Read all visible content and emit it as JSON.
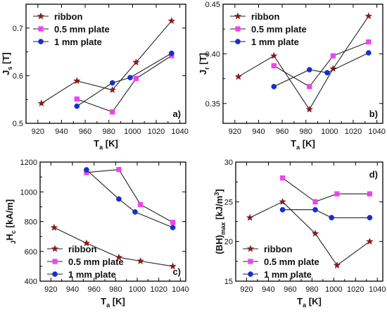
{
  "chart_data": [
    {
      "type": "line",
      "panel_label": "a)",
      "xlabel_main": "T",
      "xlabel_sub": "a",
      "xlabel_unit": " [K]",
      "ylabel_main": "J",
      "ylabel_sub": "s",
      "ylabel_sup": "",
      "ylabel_unit": " [T]",
      "xlim": [
        910,
        1045
      ],
      "ylim": [
        0.5,
        0.75
      ],
      "xticks": [
        920,
        940,
        960,
        980,
        1000,
        1020,
        1040
      ],
      "yticks": [
        0.5,
        0.6,
        0.7
      ],
      "yticks_text": [
        "0.5",
        "0.6",
        "0.7"
      ],
      "legend_position": "top-left",
      "series": [
        {
          "name": "ribbon",
          "color": "#8b1a1a",
          "marker": "star",
          "x": [
            923,
            953,
            983,
            1003,
            1033
          ],
          "y": [
            0.542,
            0.589,
            0.57,
            0.628,
            0.715
          ]
        },
        {
          "name": "0.5 mm plate",
          "color": "#ee44ee",
          "marker": "square",
          "x": [
            953,
            983,
            1003,
            1033
          ],
          "y": [
            0.551,
            0.524,
            0.594,
            0.642
          ]
        },
        {
          "name": "1 mm plate",
          "color": "#1530cc",
          "marker": "circle",
          "x": [
            953,
            983,
            998,
            1033
          ],
          "y": [
            0.536,
            0.585,
            0.596,
            0.647
          ]
        }
      ]
    },
    {
      "type": "line",
      "panel_label": "b)",
      "xlabel_main": "T",
      "xlabel_sub": "a",
      "xlabel_unit": " [K]",
      "ylabel_main": "J",
      "ylabel_sub": "r",
      "ylabel_sup": "",
      "ylabel_unit": " [T]",
      "xlim": [
        910,
        1045
      ],
      "ylim": [
        0.33,
        0.45
      ],
      "xticks": [
        920,
        940,
        960,
        980,
        1000,
        1020,
        1040
      ],
      "yticks": [
        0.35,
        0.4,
        0.45
      ],
      "yticks_text": [
        "0.35",
        "0.40",
        "0.45"
      ],
      "legend_position": "top-left",
      "series": [
        {
          "name": "ribbon",
          "color": "#8b1a1a",
          "marker": "star",
          "x": [
            923,
            953,
            983,
            1003,
            1033
          ],
          "y": [
            0.377,
            0.398,
            0.344,
            0.385,
            0.438
          ]
        },
        {
          "name": "0.5 mm plate",
          "color": "#ee44ee",
          "marker": "square",
          "x": [
            953,
            983,
            1003,
            1033
          ],
          "y": [
            0.388,
            0.367,
            0.398,
            0.412
          ]
        },
        {
          "name": "1 mm plate",
          "color": "#1530cc",
          "marker": "circle",
          "x": [
            953,
            983,
            998,
            1033
          ],
          "y": [
            0.367,
            0.384,
            0.381,
            0.401
          ]
        }
      ]
    },
    {
      "type": "line",
      "panel_label": "c)",
      "xlabel_main": "T",
      "xlabel_sub": "a",
      "xlabel_unit": " [K]",
      "ylabel_main": "H",
      "ylabel_presub": "J",
      "ylabel_sub": "c",
      "ylabel_sup": "",
      "ylabel_unit": " [kA/m]",
      "xlim": [
        910,
        1045
      ],
      "ylim": [
        400,
        1200
      ],
      "xticks": [
        920,
        940,
        960,
        980,
        1000,
        1020,
        1040
      ],
      "yticks": [
        400,
        600,
        800,
        1000,
        1200
      ],
      "yticks_text": [
        "400",
        "600",
        "800",
        "1000",
        "1200"
      ],
      "legend_position": "bottom-left",
      "series": [
        {
          "name": "ribbon",
          "color": "#8b1a1a",
          "marker": "star",
          "x": [
            923,
            953,
            983,
            1003,
            1033
          ],
          "y": [
            760,
            655,
            560,
            535,
            500
          ]
        },
        {
          "name": "0.5 mm plate",
          "color": "#ee44ee",
          "marker": "square",
          "x": [
            953,
            983,
            1003,
            1033
          ],
          "y": [
            1130,
            1150,
            915,
            795
          ]
        },
        {
          "name": "1 mm plate",
          "color": "#1530cc",
          "marker": "circle",
          "x": [
            953,
            983,
            998,
            1033
          ],
          "y": [
            1148,
            952,
            865,
            760
          ]
        }
      ]
    },
    {
      "type": "line",
      "panel_label": "d)",
      "xlabel_main": "T",
      "xlabel_sub": "a",
      "xlabel_unit": " [K]",
      "ylabel_main": "(BH)",
      "ylabel_sub": "max",
      "ylabel_sup": "3",
      "ylabel_unit": " [kJ/m",
      "xlim": [
        910,
        1045
      ],
      "ylim": [
        15,
        30
      ],
      "xticks": [
        920,
        940,
        960,
        980,
        1000,
        1020,
        1040
      ],
      "yticks": [
        15,
        20,
        25,
        30
      ],
      "yticks_text": [
        "15",
        "20",
        "25",
        "30"
      ],
      "legend_position": "bottom-left",
      "series": [
        {
          "name": "ribbon",
          "color": "#8b1a1a",
          "marker": "star",
          "x": [
            923,
            953,
            983,
            1003,
            1033
          ],
          "y": [
            23,
            25,
            21,
            17,
            20
          ]
        },
        {
          "name": "0.5 mm plate",
          "color": "#ee44ee",
          "marker": "square",
          "x": [
            953,
            983,
            1003,
            1033
          ],
          "y": [
            28,
            25,
            26,
            26
          ]
        },
        {
          "name": "1 mm plate",
          "color": "#1530cc",
          "marker": "circle",
          "x": [
            953,
            983,
            998,
            1033
          ],
          "y": [
            24,
            24,
            23,
            23
          ]
        }
      ]
    }
  ]
}
